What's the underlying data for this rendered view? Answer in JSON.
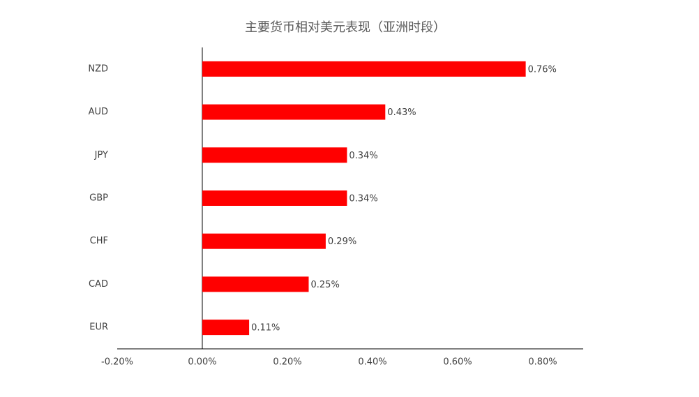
{
  "chart_data": {
    "type": "hbar",
    "title": "主要货币相对美元表现（亚洲时段）",
    "categories": [
      "NZD",
      "AUD",
      "JPY",
      "GBP",
      "CHF",
      "CAD",
      "EUR"
    ],
    "values": [
      0.76,
      0.43,
      0.34,
      0.34,
      0.29,
      0.25,
      0.11
    ],
    "value_labels": [
      "0.76%",
      "0.43%",
      "0.34%",
      "0.34%",
      "0.29%",
      "0.25%",
      "0.11%"
    ],
    "color": "#ff0000",
    "xlim": [
      -0.2,
      0.9
    ],
    "xticks": [
      {
        "value": -0.2,
        "label": "-0.20%"
      },
      {
        "value": 0,
        "label": "0.00%"
      },
      {
        "value": 0.2,
        "label": "0.20%"
      },
      {
        "value": 0.4,
        "label": "0.40%"
      },
      {
        "value": 0.6,
        "label": "0.60%"
      },
      {
        "value": 0.8,
        "label": "0.80%"
      }
    ],
    "grid": false
  }
}
